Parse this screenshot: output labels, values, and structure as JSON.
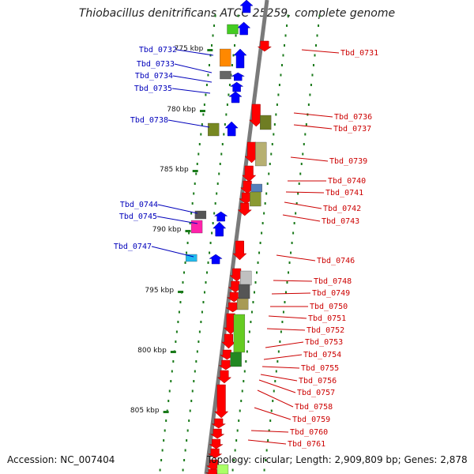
{
  "title": "Thiobacillus denitrificans ATCC 25259, complete genome",
  "accession": "Accession: NC_007404",
  "topology": "Topology: circular; Length: 2,909,809 bp; Genes: 2,878",
  "colors": {
    "forward_label": "#0000bb",
    "reverse_label": "#cc0000",
    "forward_gene": "#0000ff",
    "reverse_gene": "#ff0000",
    "backbone": "#7a7a7a",
    "tick": "#1a7a1a"
  },
  "scale_labels": [
    "775 kbp",
    "780 kbp",
    "785 kbp",
    "790 kbp",
    "795 kbp",
    "800 kbp",
    "805 kbp"
  ],
  "forward_labels": [
    "Tbd_0732",
    "Tbd_0733",
    "Tbd_0734",
    "Tbd_0735",
    "Tbd_0738",
    "Tbd_0744",
    "Tbd_0745",
    "Tbd_0747"
  ],
  "reverse_labels": [
    "Tbd_0731",
    "Tbd_0736",
    "Tbd_0737",
    "Tbd_0739",
    "Tbd_0740",
    "Tbd_0741",
    "Tbd_0742",
    "Tbd_0743",
    "Tbd_0746",
    "Tbd_0748",
    "Tbd_0749",
    "Tbd_0750",
    "Tbd_0751",
    "Tbd_0752",
    "Tbd_0753",
    "Tbd_0754",
    "Tbd_0755",
    "Tbd_0756",
    "Tbd_0757",
    "Tbd_0758",
    "Tbd_0759",
    "Tbd_0760",
    "Tbd_0761"
  ]
}
